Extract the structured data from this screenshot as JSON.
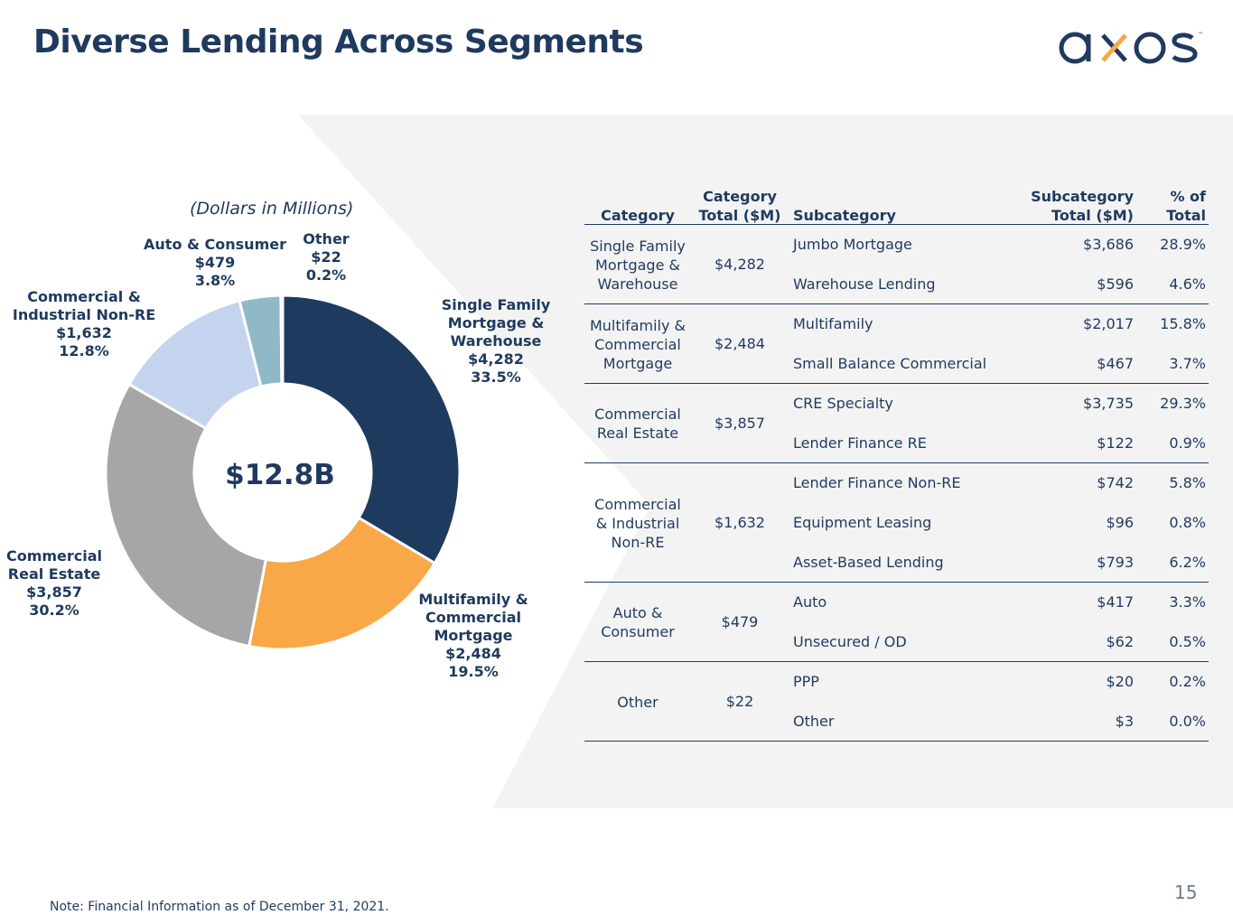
{
  "title": "Diverse Lending Across Segments",
  "logo": {
    "text": "axos",
    "tm": "™"
  },
  "subtitle": "(Dollars in Millions)",
  "center_total": "$12.8B",
  "colors": {
    "navy": "#1f3a5f",
    "orange": "#f9a847",
    "gray": "#a6a6a6",
    "lightblue": "#c5d4ee",
    "teal": "#8fb8c9",
    "panel": "#f3f3f3"
  },
  "chart_data": {
    "type": "pie",
    "donut": true,
    "categories": [
      "Single Family Mortgage & Warehouse",
      "Multifamily & Commercial Mortgage",
      "Commercial Real Estate",
      "Commercial & Industrial Non-RE",
      "Auto & Consumer",
      "Other"
    ],
    "values": [
      4282,
      2484,
      3857,
      1632,
      479,
      22
    ],
    "percents": [
      33.5,
      19.5,
      30.2,
      12.8,
      3.8,
      0.2
    ],
    "labels": [
      {
        "lines": [
          "Single Family",
          "Mortgage &",
          "Warehouse",
          "$4,282",
          "33.5%"
        ]
      },
      {
        "lines": [
          "Multifamily &",
          "Commercial",
          "Mortgage",
          "$2,484",
          "19.5%"
        ]
      },
      {
        "lines": [
          "Commercial",
          "Real Estate",
          "$3,857",
          "30.2%"
        ]
      },
      {
        "lines": [
          "Commercial &",
          "Industrial Non-RE",
          "$1,632",
          "12.8%"
        ]
      },
      {
        "lines": [
          "Auto & Consumer",
          "$479",
          "3.8%"
        ]
      },
      {
        "lines": [
          "Other",
          "$22",
          "0.2%"
        ]
      }
    ]
  },
  "table": {
    "headers": {
      "category": "Category",
      "category_total": [
        "Category",
        "Total ($M)"
      ],
      "subcategory": "Subcategory",
      "subcategory_total": [
        "Subcategory",
        "Total ($M)"
      ],
      "pct": [
        "% of",
        "Total"
      ]
    },
    "groups": [
      {
        "category": [
          "Single Family",
          "Mortgage &",
          "Warehouse"
        ],
        "total": "$4,282",
        "subs": [
          {
            "name": "Jumbo Mortgage",
            "total": "$3,686",
            "pct": "28.9%"
          },
          {
            "name": "Warehouse Lending",
            "total": "$596",
            "pct": "4.6%"
          }
        ]
      },
      {
        "category": [
          "Multifamily &",
          "Commercial",
          "Mortgage"
        ],
        "total": "$2,484",
        "subs": [
          {
            "name": "Multifamily",
            "total": "$2,017",
            "pct": "15.8%"
          },
          {
            "name": "Small Balance Commercial",
            "total": "$467",
            "pct": "3.7%"
          }
        ]
      },
      {
        "category": [
          "Commercial",
          "Real Estate"
        ],
        "total": "$3,857",
        "subs": [
          {
            "name": "CRE Specialty",
            "total": "$3,735",
            "pct": "29.3%"
          },
          {
            "name": "Lender Finance RE",
            "total": "$122",
            "pct": "0.9%"
          }
        ]
      },
      {
        "category": [
          "Commercial",
          "& Industrial",
          "Non-RE"
        ],
        "total": "$1,632",
        "subs": [
          {
            "name": "Lender Finance Non-RE",
            "total": "$742",
            "pct": "5.8%"
          },
          {
            "name": "Equipment Leasing",
            "total": "$96",
            "pct": "0.8%"
          },
          {
            "name": "Asset-Based Lending",
            "total": "$793",
            "pct": "6.2%"
          }
        ]
      },
      {
        "category": [
          "Auto &",
          "Consumer"
        ],
        "total": "$479",
        "subs": [
          {
            "name": "Auto",
            "total": "$417",
            "pct": "3.3%"
          },
          {
            "name": "Unsecured / OD",
            "total": "$62",
            "pct": "0.5%"
          }
        ]
      },
      {
        "category": [
          "Other"
        ],
        "total": "$22",
        "subs": [
          {
            "name": "PPP",
            "total": "$20",
            "pct": "0.2%"
          },
          {
            "name": "Other",
            "total": "$3",
            "pct": "0.0%"
          }
        ]
      }
    ]
  },
  "note": "Note: Financial Information as of December 31, 2021.",
  "page_number": "15"
}
